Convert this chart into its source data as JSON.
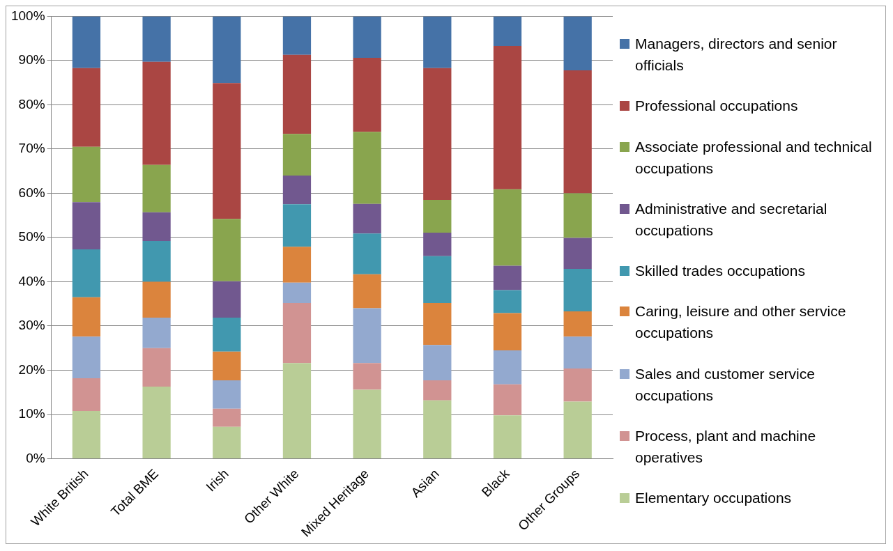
{
  "chart_data": {
    "type": "bar",
    "stacked": true,
    "categories": [
      "White British",
      "Total BME",
      "Irish",
      "Other White",
      "Mixed Heritage",
      "Asian",
      "Black",
      "Other Groups"
    ],
    "ylim": [
      0,
      100
    ],
    "yticks": [
      {
        "value": 0,
        "label": "0%"
      },
      {
        "value": 10,
        "label": "10%"
      },
      {
        "value": 20,
        "label": "20%"
      },
      {
        "value": 30,
        "label": "30%"
      },
      {
        "value": 40,
        "label": "40%"
      },
      {
        "value": 50,
        "label": "50%"
      },
      {
        "value": 60,
        "label": "60%"
      },
      {
        "value": 70,
        "label": "70%"
      },
      {
        "value": 80,
        "label": "80%"
      },
      {
        "value": 90,
        "label": "90%"
      },
      {
        "value": 100,
        "label": "100%"
      }
    ],
    "grid": "y",
    "legend": "right",
    "series": [
      {
        "name": "Elementary occupations",
        "color": "#b9cd96",
        "values": [
          10.8,
          16.3,
          7.2,
          21.6,
          15.6,
          13.2,
          9.8,
          12.9
        ]
      },
      {
        "name": "Process, plant and machine operatives",
        "color": "#d19392",
        "values": [
          7.4,
          8.7,
          4.1,
          13.6,
          6.0,
          4.5,
          7.0,
          7.5
        ]
      },
      {
        "name": "Sales and customer service occupations",
        "color": "#93a9cf",
        "values": [
          9.4,
          6.9,
          6.4,
          4.6,
          12.4,
          8.0,
          7.7,
          7.2
        ]
      },
      {
        "name": "Caring, leisure and other service occupations",
        "color": "#db843d",
        "values": [
          8.9,
          8.1,
          6.5,
          8.1,
          7.7,
          9.5,
          8.4,
          5.7
        ]
      },
      {
        "name": "Skilled trades occupations",
        "color": "#4198af",
        "values": [
          10.8,
          9.2,
          7.7,
          9.6,
          9.2,
          10.6,
          5.2,
          9.6
        ]
      },
      {
        "name": "Administrative and secretarial occupations",
        "color": "#71588f",
        "values": [
          10.7,
          6.5,
          8.2,
          6.5,
          6.7,
          5.3,
          5.5,
          7.0
        ]
      },
      {
        "name": "Associate professional and technical occupations",
        "color": "#89a54e",
        "values": [
          12.5,
          10.7,
          14.1,
          9.4,
          16.3,
          7.4,
          17.3,
          10.1
        ]
      },
      {
        "name": "Professional occupations",
        "color": "#aa4643",
        "values": [
          17.8,
          23.3,
          30.7,
          17.9,
          16.7,
          29.8,
          32.4,
          27.8
        ]
      },
      {
        "name": "Managers, directors and senior officials",
        "color": "#4572a7",
        "values": [
          11.7,
          10.3,
          15.1,
          8.7,
          9.4,
          11.7,
          6.7,
          12.2
        ]
      }
    ]
  }
}
